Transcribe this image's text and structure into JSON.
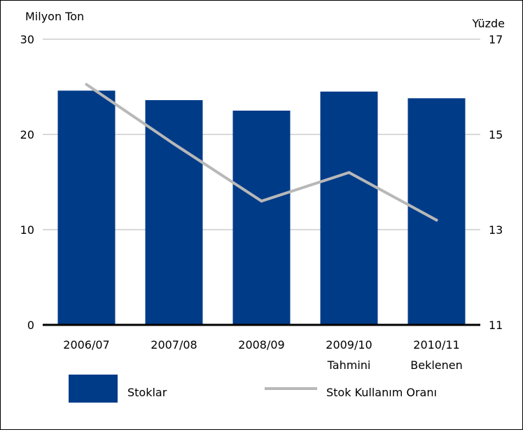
{
  "chart_data": {
    "type": "bar",
    "left_axis_unit": "Milyon Ton",
    "right_axis_unit": "Yüzde",
    "categories": [
      {
        "line1": "2006/07",
        "line2": ""
      },
      {
        "line1": "2007/08",
        "line2": ""
      },
      {
        "line1": "2008/09",
        "line2": ""
      },
      {
        "line1": "2009/10",
        "line2": "Tahmini"
      },
      {
        "line1": "2010/11",
        "line2": "Beklenen"
      }
    ],
    "y_left": {
      "min": 0,
      "max": 30,
      "ticks": [
        "0",
        "10",
        "20",
        "30"
      ]
    },
    "y_right": {
      "min": 11,
      "max": 17,
      "ticks": [
        "11",
        "13",
        "15",
        "17"
      ]
    },
    "series": [
      {
        "name": "Stoklar",
        "type": "bar",
        "axis": "left",
        "color": "#003b88",
        "values": [
          24.6,
          23.6,
          22.5,
          24.5,
          23.8
        ]
      },
      {
        "name": "Stok Kullanım Oranı",
        "type": "line",
        "axis": "right",
        "color": "#b8b8b8",
        "values": [
          16.05,
          14.8,
          13.6,
          14.2,
          13.2
        ]
      }
    ],
    "grid": true,
    "legend_position": "bottom"
  }
}
